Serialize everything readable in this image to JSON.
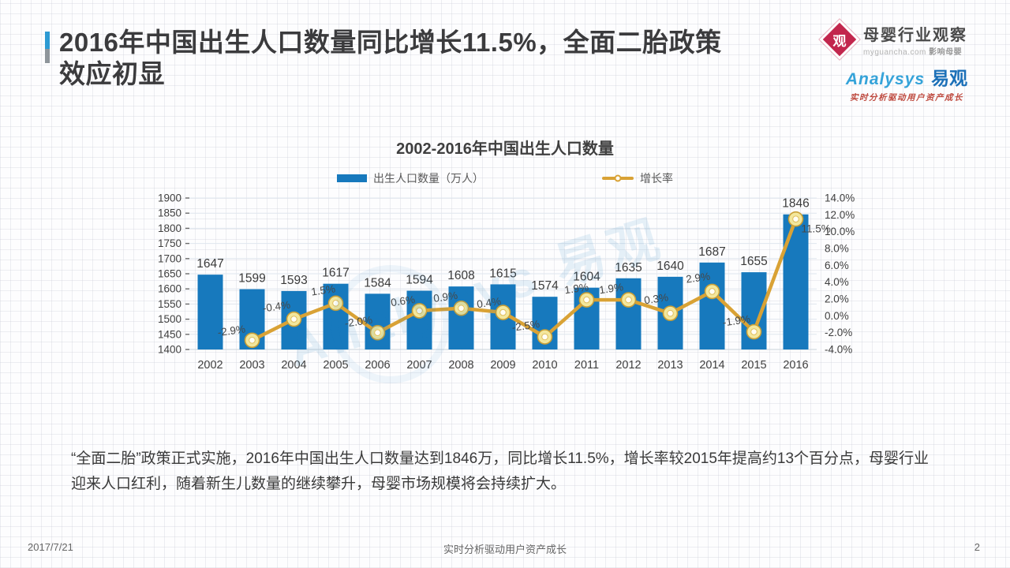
{
  "header": {
    "title_lines": [
      "2016年中国出生人口数量同比增长11.5%，全面二胎政策",
      "效应初显"
    ],
    "brand_primary": {
      "logo_char": "观",
      "name": "母婴行业观察",
      "domain": "myguancha.com",
      "tagline": "影响母婴"
    },
    "brand_secondary": {
      "name_en": "Analysys",
      "name_cn": "易观",
      "tagline": "实时分析驱动用户资产成长"
    }
  },
  "chart_data": {
    "type": "bar",
    "title": "2002-2016年中国出生人口数量",
    "categories": [
      "2002",
      "2003",
      "2004",
      "2005",
      "2006",
      "2007",
      "2008",
      "2009",
      "2010",
      "2011",
      "2012",
      "2013",
      "2014",
      "2015",
      "2016"
    ],
    "series": [
      {
        "name": "出生人口数量（万人）",
        "type": "bar",
        "color": "#1779bd",
        "values": [
          1647,
          1599,
          1593,
          1617,
          1584,
          1594,
          1608,
          1615,
          1574,
          1604,
          1635,
          1640,
          1687,
          1655,
          1846
        ]
      },
      {
        "name": "增长率",
        "type": "line",
        "color": "#d9a235",
        "values": [
          null,
          -2.9,
          -0.4,
          1.5,
          -2.0,
          0.6,
          0.9,
          0.4,
          -2.5,
          1.9,
          1.9,
          0.3,
          2.9,
          -1.9,
          11.5
        ],
        "labels": [
          "",
          "-2.9%",
          "-0.4%",
          "1.5%",
          "-2.0%",
          "0.6%",
          "0.9%",
          "0.4%",
          "-2.5%",
          "1.9%",
          "1.9%",
          "0.3%",
          "2.9%",
          "-1.9%",
          "11.5%"
        ]
      }
    ],
    "left_axis": {
      "min": 1400,
      "max": 1900,
      "ticks": [
        "1900",
        "1850",
        "1800",
        "1750",
        "1700",
        "1650",
        "1600",
        "1550",
        "1500",
        "1450",
        "1400"
      ]
    },
    "right_axis": {
      "min": -4,
      "max": 14,
      "ticks": [
        "14.0%",
        "12.0%",
        "10.0%",
        "8.0%",
        "6.0%",
        "4.0%",
        "2.0%",
        "0.0%",
        "-2.0%",
        "-4.0%"
      ]
    },
    "grid": true,
    "legend_position": "top"
  },
  "watermark": {
    "text": "Analysys 易观"
  },
  "body": {
    "paragraph": "“全面二胎”政策正式实施，2016年中国出生人口数量达到1846万，同比增长11.5%，增长率较2015年提高约13个百分点，母婴行业迎来人口红利，随着新生儿数量的继续攀升，母婴市场规模将会持续扩大。"
  },
  "footer": {
    "date": "2017/7/21",
    "center": "实时分析驱动用户资产成长",
    "page": "2"
  }
}
